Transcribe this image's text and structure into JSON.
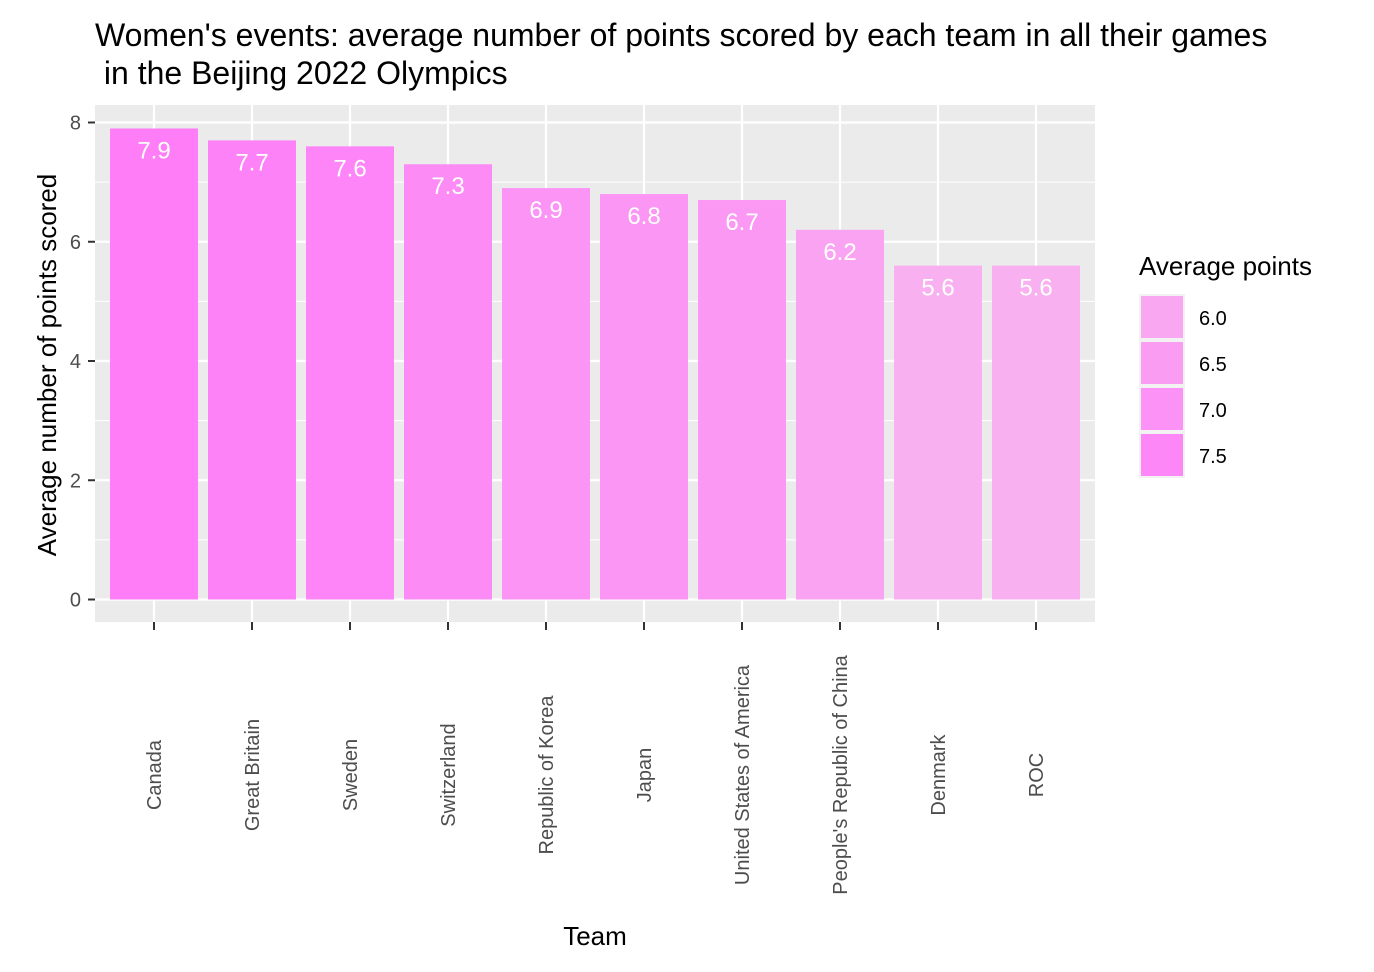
{
  "chart_data": {
    "type": "bar",
    "title": "Women's events: average number of points scored by each team in all their games",
    "subtitle": " in the Beijing 2022 Olympics",
    "xlabel": "Team",
    "ylabel": "Average number of points scored",
    "categories": [
      "Canada",
      "Great Britain",
      "Sweden",
      "Switzerland",
      "Republic of Korea",
      "Japan",
      "United States of America",
      "People's Republic of China",
      "Denmark",
      "ROC"
    ],
    "values": [
      7.9,
      7.7,
      7.6,
      7.3,
      6.9,
      6.8,
      6.7,
      6.2,
      5.6,
      5.6
    ],
    "data_labels": [
      "7.9",
      "7.7",
      "7.6",
      "7.3",
      "6.9",
      "6.8",
      "6.7",
      "6.2",
      "5.6",
      "5.6"
    ],
    "ylim": [
      0,
      8
    ],
    "yticks": [
      0,
      2,
      4,
      6,
      8
    ],
    "grid": true,
    "panel_background": "#ebebeb",
    "gridline_color": "#ffffff",
    "color_scale": {
      "low_value": 5.6,
      "low_color": "#f8b0f0",
      "high_value": 7.9,
      "high_color": "#ff7ef8"
    },
    "legend": {
      "title": "Average points",
      "position": "right",
      "entries": [
        {
          "label": "6.0",
          "value": 6.0
        },
        {
          "label": "6.5",
          "value": 6.5
        },
        {
          "label": "7.0",
          "value": 7.0
        },
        {
          "label": "7.5",
          "value": 7.5
        }
      ]
    }
  }
}
